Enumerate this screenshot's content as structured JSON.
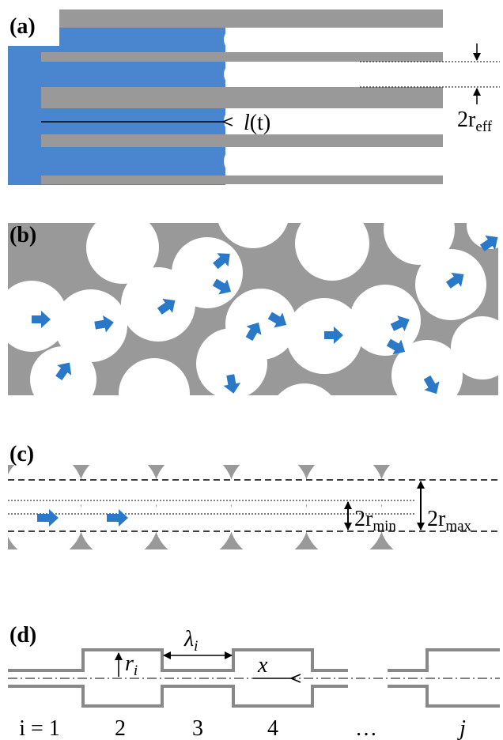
{
  "panels": {
    "a": {
      "label": "(a)",
      "length_base": "l",
      "length_arg": "(t)",
      "radius_base": "2r",
      "radius_sub": "eff"
    },
    "b": {
      "label": "(b)"
    },
    "c": {
      "label": "(c)",
      "min_base": "2r",
      "min_sub": "min",
      "max_base": "2r",
      "max_sub": "max"
    },
    "d": {
      "label": "(d)",
      "r_base": "r",
      "r_sub": "i",
      "lambda_base": "λ",
      "lambda_sub": "i",
      "x": "x",
      "indices": [
        "i = 1",
        "2",
        "3",
        "4",
        "…",
        "j"
      ]
    }
  }
}
